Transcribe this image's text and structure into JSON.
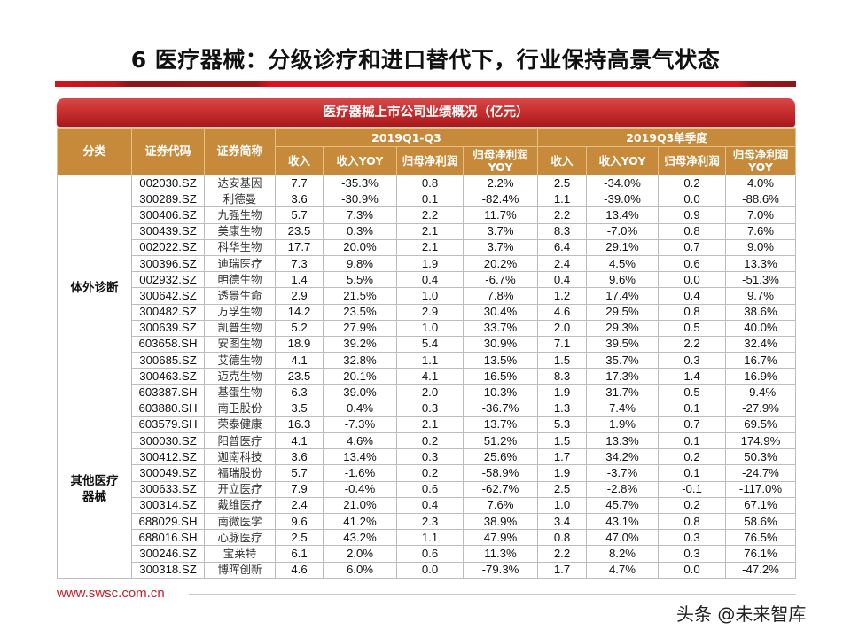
{
  "page": {
    "title": "6 医疗器械：分级诊疗和进口替代下，行业保持高景气状态",
    "table_title": "医疗器械上市公司业绩概况（亿元）",
    "footer_url": "www.swsc.com.cn",
    "watermark": "头条 @未来智库",
    "colors": {
      "header_bg": "#c68a3a",
      "banner_red": "#c8302f",
      "accent_red": "#e0101e",
      "url_red": "#c8202a"
    }
  },
  "table": {
    "headers": {
      "category": "分类",
      "code": "证券代码",
      "name": "证券简称",
      "period1": "2019Q1-Q3",
      "period2": "2019Q3单季度",
      "metrics": [
        "收入",
        "收入YOY",
        "归母净利润",
        "归母净利润YOY"
      ]
    },
    "groups": [
      {
        "category": "体外诊断",
        "rows": [
          {
            "code": "002030.SZ",
            "name": "达安基因",
            "ytd_rev": "7.7",
            "ytd_rev_yoy": "-35.3%",
            "ytd_np": "0.8",
            "ytd_np_yoy": "2.2%",
            "q3_rev": "2.5",
            "q3_rev_yoy": "-34.0%",
            "q3_np": "0.2",
            "q3_np_yoy": "4.0%"
          },
          {
            "code": "300289.SZ",
            "name": "利德曼",
            "ytd_rev": "3.6",
            "ytd_rev_yoy": "-30.9%",
            "ytd_np": "0.1",
            "ytd_np_yoy": "-82.4%",
            "q3_rev": "1.1",
            "q3_rev_yoy": "-39.0%",
            "q3_np": "0.0",
            "q3_np_yoy": "-88.6%"
          },
          {
            "code": "300406.SZ",
            "name": "九强生物",
            "ytd_rev": "5.7",
            "ytd_rev_yoy": "7.3%",
            "ytd_np": "2.2",
            "ytd_np_yoy": "11.7%",
            "q3_rev": "2.2",
            "q3_rev_yoy": "13.4%",
            "q3_np": "0.9",
            "q3_np_yoy": "7.0%"
          },
          {
            "code": "300439.SZ",
            "name": "美康生物",
            "ytd_rev": "23.5",
            "ytd_rev_yoy": "0.3%",
            "ytd_np": "2.1",
            "ytd_np_yoy": "3.7%",
            "q3_rev": "8.3",
            "q3_rev_yoy": "-7.0%",
            "q3_np": "0.8",
            "q3_np_yoy": "7.6%"
          },
          {
            "code": "002022.SZ",
            "name": "科华生物",
            "ytd_rev": "17.7",
            "ytd_rev_yoy": "20.0%",
            "ytd_np": "2.1",
            "ytd_np_yoy": "3.7%",
            "q3_rev": "6.4",
            "q3_rev_yoy": "29.1%",
            "q3_np": "0.7",
            "q3_np_yoy": "9.0%"
          },
          {
            "code": "300396.SZ",
            "name": "迪瑞医疗",
            "ytd_rev": "7.3",
            "ytd_rev_yoy": "9.8%",
            "ytd_np": "1.9",
            "ytd_np_yoy": "20.2%",
            "q3_rev": "2.4",
            "q3_rev_yoy": "4.5%",
            "q3_np": "0.6",
            "q3_np_yoy": "13.3%"
          },
          {
            "code": "002932.SZ",
            "name": "明德生物",
            "ytd_rev": "1.4",
            "ytd_rev_yoy": "5.5%",
            "ytd_np": "0.4",
            "ytd_np_yoy": "-6.7%",
            "q3_rev": "0.4",
            "q3_rev_yoy": "9.6%",
            "q3_np": "0.0",
            "q3_np_yoy": "-51.3%"
          },
          {
            "code": "300642.SZ",
            "name": "透景生命",
            "ytd_rev": "2.9",
            "ytd_rev_yoy": "21.5%",
            "ytd_np": "1.0",
            "ytd_np_yoy": "7.8%",
            "q3_rev": "1.2",
            "q3_rev_yoy": "17.4%",
            "q3_np": "0.4",
            "q3_np_yoy": "9.7%"
          },
          {
            "code": "300482.SZ",
            "name": "万孚生物",
            "ytd_rev": "14.2",
            "ytd_rev_yoy": "23.5%",
            "ytd_np": "2.9",
            "ytd_np_yoy": "30.4%",
            "q3_rev": "4.6",
            "q3_rev_yoy": "29.5%",
            "q3_np": "0.8",
            "q3_np_yoy": "38.6%"
          },
          {
            "code": "300639.SZ",
            "name": "凯普生物",
            "ytd_rev": "5.2",
            "ytd_rev_yoy": "27.9%",
            "ytd_np": "1.0",
            "ytd_np_yoy": "33.7%",
            "q3_rev": "2.0",
            "q3_rev_yoy": "29.3%",
            "q3_np": "0.5",
            "q3_np_yoy": "40.0%"
          },
          {
            "code": "603658.SH",
            "name": "安图生物",
            "ytd_rev": "18.9",
            "ytd_rev_yoy": "39.2%",
            "ytd_np": "5.4",
            "ytd_np_yoy": "30.9%",
            "q3_rev": "7.1",
            "q3_rev_yoy": "39.5%",
            "q3_np": "2.2",
            "q3_np_yoy": "32.4%"
          },
          {
            "code": "300685.SZ",
            "name": "艾德生物",
            "ytd_rev": "4.1",
            "ytd_rev_yoy": "32.8%",
            "ytd_np": "1.1",
            "ytd_np_yoy": "13.5%",
            "q3_rev": "1.5",
            "q3_rev_yoy": "35.7%",
            "q3_np": "0.3",
            "q3_np_yoy": "16.7%"
          },
          {
            "code": "300463.SZ",
            "name": "迈克生物",
            "ytd_rev": "23.5",
            "ytd_rev_yoy": "20.1%",
            "ytd_np": "4.1",
            "ytd_np_yoy": "16.5%",
            "q3_rev": "8.3",
            "q3_rev_yoy": "17.3%",
            "q3_np": "1.4",
            "q3_np_yoy": "16.9%"
          },
          {
            "code": "603387.SH",
            "name": "基蛋生物",
            "ytd_rev": "6.3",
            "ytd_rev_yoy": "39.0%",
            "ytd_np": "2.0",
            "ytd_np_yoy": "10.3%",
            "q3_rev": "1.9",
            "q3_rev_yoy": "31.7%",
            "q3_np": "0.5",
            "q3_np_yoy": "-9.4%"
          }
        ]
      },
      {
        "category": "其他医疗器械",
        "rows": [
          {
            "code": "603880.SH",
            "name": "南卫股份",
            "ytd_rev": "3.5",
            "ytd_rev_yoy": "0.4%",
            "ytd_np": "0.3",
            "ytd_np_yoy": "-36.7%",
            "q3_rev": "1.3",
            "q3_rev_yoy": "7.4%",
            "q3_np": "0.1",
            "q3_np_yoy": "-27.9%"
          },
          {
            "code": "603579.SH",
            "name": "荣泰健康",
            "ytd_rev": "16.3",
            "ytd_rev_yoy": "-7.3%",
            "ytd_np": "2.1",
            "ytd_np_yoy": "13.7%",
            "q3_rev": "5.3",
            "q3_rev_yoy": "1.9%",
            "q3_np": "0.7",
            "q3_np_yoy": "69.5%"
          },
          {
            "code": "300030.SZ",
            "name": "阳普医疗",
            "ytd_rev": "4.1",
            "ytd_rev_yoy": "4.6%",
            "ytd_np": "0.2",
            "ytd_np_yoy": "51.2%",
            "q3_rev": "1.5",
            "q3_rev_yoy": "13.3%",
            "q3_np": "0.1",
            "q3_np_yoy": "174.9%"
          },
          {
            "code": "300412.SZ",
            "name": "迦南科技",
            "ytd_rev": "3.6",
            "ytd_rev_yoy": "13.4%",
            "ytd_np": "0.3",
            "ytd_np_yoy": "25.6%",
            "q3_rev": "1.7",
            "q3_rev_yoy": "34.2%",
            "q3_np": "0.2",
            "q3_np_yoy": "50.3%"
          },
          {
            "code": "300049.SZ",
            "name": "福瑞股份",
            "ytd_rev": "5.7",
            "ytd_rev_yoy": "-1.6%",
            "ytd_np": "0.2",
            "ytd_np_yoy": "-58.9%",
            "q3_rev": "1.9",
            "q3_rev_yoy": "-3.7%",
            "q3_np": "0.1",
            "q3_np_yoy": "-24.7%"
          },
          {
            "code": "300633.SZ",
            "name": "开立医疗",
            "ytd_rev": "7.9",
            "ytd_rev_yoy": "-0.4%",
            "ytd_np": "0.6",
            "ytd_np_yoy": "-62.7%",
            "q3_rev": "2.5",
            "q3_rev_yoy": "-2.8%",
            "q3_np": "-0.1",
            "q3_np_yoy": "-117.0%"
          },
          {
            "code": "300314.SZ",
            "name": "戴维医疗",
            "ytd_rev": "2.4",
            "ytd_rev_yoy": "21.0%",
            "ytd_np": "0.4",
            "ytd_np_yoy": "7.6%",
            "q3_rev": "1.0",
            "q3_rev_yoy": "45.7%",
            "q3_np": "0.2",
            "q3_np_yoy": "67.1%"
          },
          {
            "code": "688029.SH",
            "name": "南微医学",
            "ytd_rev": "9.6",
            "ytd_rev_yoy": "41.2%",
            "ytd_np": "2.3",
            "ytd_np_yoy": "38.9%",
            "q3_rev": "3.4",
            "q3_rev_yoy": "43.1%",
            "q3_np": "0.8",
            "q3_np_yoy": "58.6%"
          },
          {
            "code": "688016.SH",
            "name": "心脉医疗",
            "ytd_rev": "2.5",
            "ytd_rev_yoy": "43.2%",
            "ytd_np": "1.1",
            "ytd_np_yoy": "47.9%",
            "q3_rev": "0.8",
            "q3_rev_yoy": "47.0%",
            "q3_np": "0.3",
            "q3_np_yoy": "76.5%"
          },
          {
            "code": "300246.SZ",
            "name": "宝莱特",
            "ytd_rev": "6.1",
            "ytd_rev_yoy": "2.0%",
            "ytd_np": "0.6",
            "ytd_np_yoy": "11.3%",
            "q3_rev": "2.2",
            "q3_rev_yoy": "8.2%",
            "q3_np": "0.3",
            "q3_np_yoy": "76.1%"
          },
          {
            "code": "300318.SZ",
            "name": "博晖创新",
            "ytd_rev": "4.6",
            "ytd_rev_yoy": "6.0%",
            "ytd_np": "0.0",
            "ytd_np_yoy": "-79.3%",
            "q3_rev": "1.7",
            "q3_rev_yoy": "4.7%",
            "q3_np": "0.0",
            "q3_np_yoy": "-47.2%"
          }
        ]
      }
    ]
  }
}
